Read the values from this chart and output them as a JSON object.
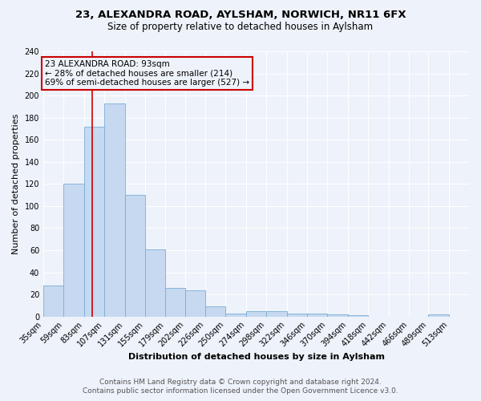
{
  "title1": "23, ALEXANDRA ROAD, AYLSHAM, NORWICH, NR11 6FX",
  "title2": "Size of property relative to detached houses in Aylsham",
  "xlabel": "Distribution of detached houses by size in Aylsham",
  "ylabel": "Number of detached properties",
  "footer1": "Contains HM Land Registry data © Crown copyright and database right 2024.",
  "footer2": "Contains public sector information licensed under the Open Government Licence v3.0.",
  "annotation_line1": "23 ALEXANDRA ROAD: 93sqm",
  "annotation_line2": "← 28% of detached houses are smaller (214)",
  "annotation_line3": "69% of semi-detached houses are larger (527) →",
  "bin_labels": [
    "35sqm",
    "59sqm",
    "83sqm",
    "107sqm",
    "131sqm",
    "155sqm",
    "179sqm",
    "202sqm",
    "226sqm",
    "250sqm",
    "274sqm",
    "298sqm",
    "322sqm",
    "346sqm",
    "370sqm",
    "394sqm",
    "418sqm",
    "442sqm",
    "466sqm",
    "489sqm",
    "513sqm"
  ],
  "bar_values": [
    28,
    120,
    172,
    193,
    110,
    61,
    26,
    24,
    9,
    3,
    5,
    5,
    3,
    3,
    2,
    1,
    0,
    0,
    0,
    2,
    0
  ],
  "bar_color": "#c6d9f0",
  "bar_edge_color": "#7aadd4",
  "vline_x": 93,
  "vline_color": "#cc0000",
  "bin_edges_values": [
    35,
    59,
    83,
    107,
    131,
    155,
    179,
    202,
    226,
    250,
    274,
    298,
    322,
    346,
    370,
    394,
    418,
    442,
    466,
    489,
    513
  ],
  "annotation_box_color": "#cc0000",
  "ylim": [
    0,
    240
  ],
  "yticks": [
    0,
    20,
    40,
    60,
    80,
    100,
    120,
    140,
    160,
    180,
    200,
    220,
    240
  ],
  "background_color": "#eef2fa",
  "grid_color": "#ffffff",
  "title1_fontsize": 9.5,
  "title2_fontsize": 8.5,
  "axis_label_fontsize": 8,
  "tick_fontsize": 7,
  "footer_fontsize": 6.5,
  "annotation_fontsize": 7.5
}
